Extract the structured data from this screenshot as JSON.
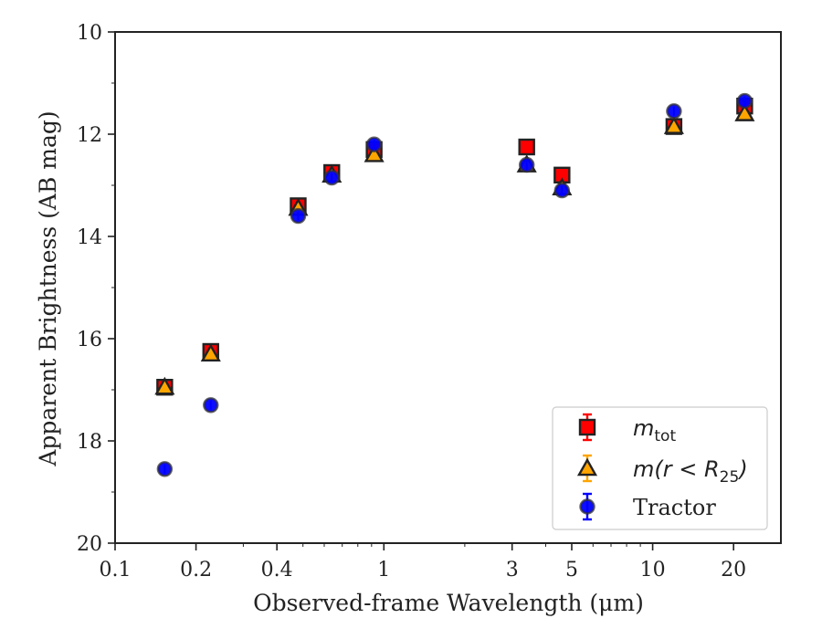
{
  "chart_data": {
    "type": "scatter",
    "xlabel": "Observed-frame Wavelength (μm)",
    "ylabel": "Apparent Brightness (AB mag)",
    "x_scale": "log",
    "xlim": [
      0.1,
      30
    ],
    "ylim": [
      20,
      10
    ],
    "y_inverted": true,
    "x_ticks": [
      0.1,
      0.2,
      0.4,
      1,
      3,
      5,
      10,
      20
    ],
    "x_tick_labels": [
      "0.1",
      "0.2",
      "0.4",
      "1",
      "3",
      "5",
      "10",
      "20"
    ],
    "y_ticks": [
      10,
      12,
      14,
      16,
      18,
      20
    ],
    "y_tick_labels": [
      "10",
      "12",
      "14",
      "16",
      "18",
      "20"
    ],
    "grid": false,
    "legend_position": "bottom-right",
    "series": [
      {
        "name": "m_tot",
        "legend_main": "m",
        "legend_sub": "tot",
        "marker": "square",
        "color": "#ff0000",
        "x": [
          0.153,
          0.227,
          0.48,
          0.64,
          0.92,
          3.4,
          4.6,
          12.0,
          22.0
        ],
        "y": [
          16.95,
          16.25,
          13.4,
          12.75,
          12.3,
          12.25,
          12.8,
          11.85,
          11.45
        ]
      },
      {
        "name": "m(r < R25)",
        "legend_main": "m",
        "legend_rest": "(r < R",
        "legend_sub": "25",
        "legend_close": ")",
        "marker": "triangle",
        "color": "#ffa500",
        "x": [
          0.153,
          0.227,
          0.48,
          0.64,
          0.92,
          3.4,
          4.6,
          12.0,
          22.0
        ],
        "y": [
          16.95,
          16.3,
          13.45,
          12.8,
          12.4,
          12.6,
          13.05,
          11.85,
          11.6
        ]
      },
      {
        "name": "Tractor",
        "marker": "circle",
        "color": "#0000ff",
        "x": [
          0.153,
          0.227,
          0.48,
          0.64,
          0.92,
          3.4,
          4.6,
          12.0,
          22.0
        ],
        "y": [
          18.55,
          17.3,
          13.6,
          12.85,
          12.2,
          12.6,
          13.1,
          11.55,
          11.35
        ]
      }
    ]
  }
}
